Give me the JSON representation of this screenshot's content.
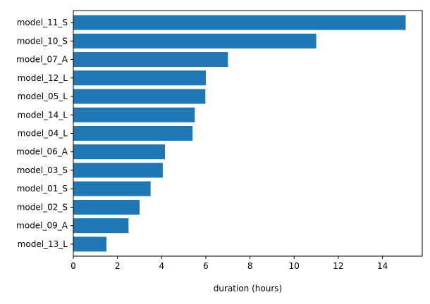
{
  "chart_data": {
    "type": "bar",
    "orientation": "horizontal",
    "categories": [
      "model_11_S",
      "model_10_S",
      "model_07_A",
      "model_12_L",
      "model_05_L",
      "model_14_L",
      "model_04_L",
      "model_06_A",
      "model_03_S",
      "model_01_S",
      "model_02_S",
      "model_09_A",
      "model_13_L"
    ],
    "values": [
      15.05,
      11.0,
      7.0,
      6.0,
      5.98,
      5.5,
      5.4,
      4.15,
      4.05,
      3.5,
      3.0,
      2.5,
      1.5
    ],
    "title": "",
    "xlabel": "duration (hours)",
    "ylabel": "",
    "xlim": [
      0,
      15.8
    ],
    "xticks": [
      0,
      2,
      4,
      6,
      8,
      10,
      12,
      14
    ],
    "grid": false,
    "bar_color": "#1f77b4"
  }
}
